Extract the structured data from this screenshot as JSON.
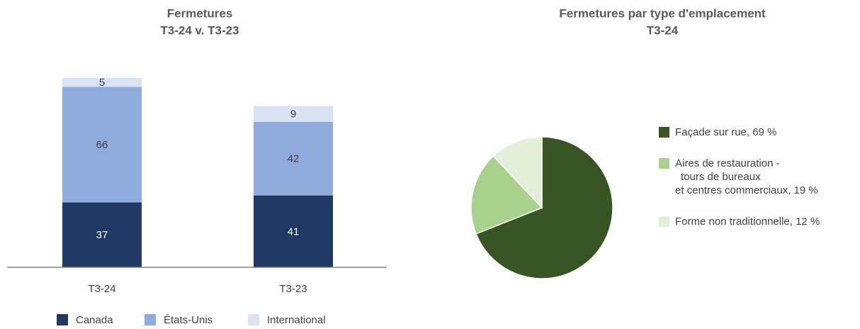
{
  "chart_data": [
    {
      "type": "bar",
      "stacked": true,
      "title": [
        "Fermetures",
        "T3-24 v. T3-23"
      ],
      "categories": [
        "T3-24",
        "T3-23"
      ],
      "series": [
        {
          "name": "Canada",
          "color": "#1f3864",
          "values": [
            37,
            41
          ]
        },
        {
          "name": "États-Unis",
          "color": "#8faadc",
          "values": [
            66,
            42
          ]
        },
        {
          "name": "International",
          "color": "#dae3f3",
          "values": [
            5,
            9
          ]
        }
      ]
    },
    {
      "type": "pie",
      "title": [
        "Fermetures par type d'emplacement",
        "T3-24"
      ],
      "labels": [
        [
          "Façade sur rue, 69 %"
        ],
        [
          "Aires de restauration -",
          "tours de bureaux",
          "et centres commerciaux, 19 %"
        ],
        [
          "Forme non traditionnelle, 12 %"
        ]
      ],
      "values": [
        69,
        19,
        12
      ],
      "colors": [
        "#375623",
        "#a9d18e",
        "#e2efd9"
      ]
    }
  ]
}
